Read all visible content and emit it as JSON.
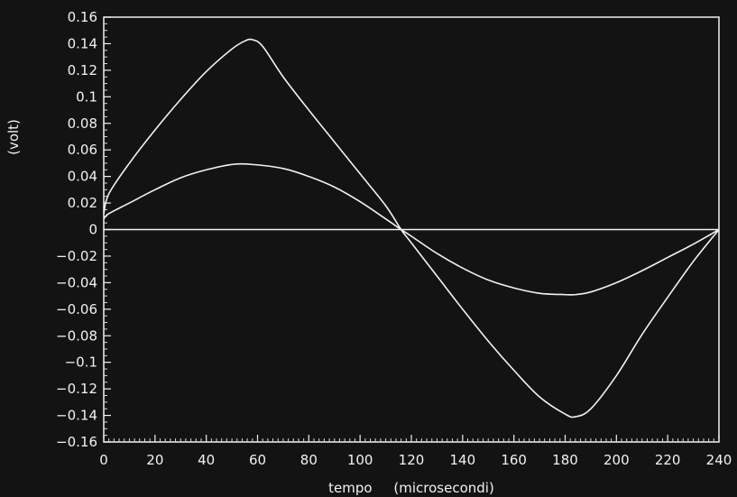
{
  "chart_data": {
    "type": "line",
    "title": "",
    "xlabel": "tempo     (microsecondi)",
    "ylabel": "(volt)",
    "xlim": [
      0,
      240
    ],
    "ylim": [
      -0.16,
      0.16
    ],
    "x_ticks": [
      0,
      20,
      40,
      60,
      80,
      100,
      120,
      140,
      160,
      180,
      200,
      220,
      240
    ],
    "x_tick_labels": [
      "0",
      "20",
      "40",
      "60",
      "80",
      "100",
      "120",
      "140",
      "160",
      "180",
      "200",
      "220",
      "240"
    ],
    "y_ticks": [
      0.16,
      0.14,
      0.12,
      0.1,
      0.08,
      0.06,
      0.04,
      0.02,
      0,
      -0.02,
      -0.04,
      -0.06,
      -0.08,
      -0.1,
      -0.12,
      -0.14,
      -0.16
    ],
    "y_tick_labels": [
      "0.16",
      "0.14",
      "0.12",
      "0.1",
      "0.08",
      "0.06",
      "0.04",
      "0.02",
      "0",
      "−0.02",
      "−0.04",
      "−0.06",
      "−0.08",
      "−0.1",
      "−0.12",
      "−0.14",
      "−0.16"
    ],
    "grid": false,
    "legend": "none",
    "zero_line": true,
    "series": [
      {
        "x": [
          0,
          2,
          10,
          20,
          30,
          40,
          50,
          55,
          58,
          62,
          70,
          80,
          90,
          100,
          110,
          116,
          120,
          130,
          140,
          150,
          160,
          170,
          180,
          184,
          190,
          200,
          210,
          220,
          230,
          240
        ],
        "y": [
          0.012,
          0.027,
          0.05,
          0.075,
          0.098,
          0.119,
          0.136,
          0.142,
          0.143,
          0.138,
          0.115,
          0.09,
          0.066,
          0.042,
          0.018,
          0.0,
          -0.01,
          -0.035,
          -0.06,
          -0.084,
          -0.106,
          -0.126,
          -0.139,
          -0.141,
          -0.135,
          -0.11,
          -0.079,
          -0.051,
          -0.024,
          0.0
        ]
      },
      {
        "x": [
          0,
          2,
          10,
          20,
          30,
          40,
          50,
          58,
          70,
          80,
          90,
          100,
          110,
          116,
          120,
          130,
          140,
          150,
          160,
          170,
          180,
          184,
          190,
          200,
          210,
          220,
          230,
          240
        ],
        "y": [
          0.008,
          0.012,
          0.02,
          0.03,
          0.039,
          0.045,
          0.049,
          0.049,
          0.046,
          0.04,
          0.032,
          0.021,
          0.008,
          0.0,
          -0.005,
          -0.018,
          -0.029,
          -0.038,
          -0.044,
          -0.048,
          -0.049,
          -0.049,
          -0.047,
          -0.04,
          -0.031,
          -0.021,
          -0.011,
          0.0
        ]
      }
    ]
  },
  "colors": {
    "background": "#131313",
    "foreground": "#f2f2f2"
  }
}
